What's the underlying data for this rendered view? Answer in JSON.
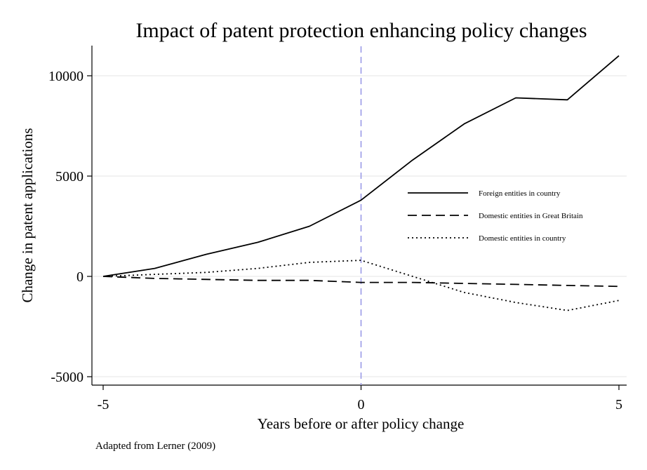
{
  "chart_data": {
    "type": "line",
    "title": "Impact of patent protection enhancing policy changes",
    "xlabel": "Years before or after policy change",
    "ylabel": "Change in patent applications",
    "source_note": "Adapted from Lerner (2009)",
    "x": [
      -5,
      -4,
      -3,
      -2,
      -1,
      0,
      1,
      2,
      3,
      4,
      5
    ],
    "xlim": [
      -5,
      5
    ],
    "ylim": [
      -5000,
      11000
    ],
    "x_ticks": [
      -5,
      0,
      5
    ],
    "y_ticks": [
      -5000,
      0,
      5000,
      10000
    ],
    "x_tick_labels": [
      "-5",
      "0",
      "5"
    ],
    "y_tick_labels": [
      "-5000",
      "0",
      "5000",
      "10000"
    ],
    "grid": "horizontal",
    "reference_line": {
      "x": 0,
      "style": "dashed",
      "color": "#9a9ae6"
    },
    "legend_position": "right",
    "series": [
      {
        "name": "Foreign entities in country",
        "style": "solid",
        "values": [
          0,
          400,
          1100,
          1700,
          2500,
          3800,
          5800,
          7600,
          8900,
          8800,
          11000
        ]
      },
      {
        "name": "Domestic entities in Great Britain",
        "style": "dashed",
        "values": [
          0,
          -100,
          -150,
          -200,
          -200,
          -300,
          -300,
          -350,
          -400,
          -450,
          -500
        ]
      },
      {
        "name": "Domestic entities in country",
        "style": "dotted",
        "values": [
          0,
          100,
          200,
          400,
          700,
          800,
          0,
          -800,
          -1300,
          -1700,
          -1200
        ]
      }
    ]
  }
}
